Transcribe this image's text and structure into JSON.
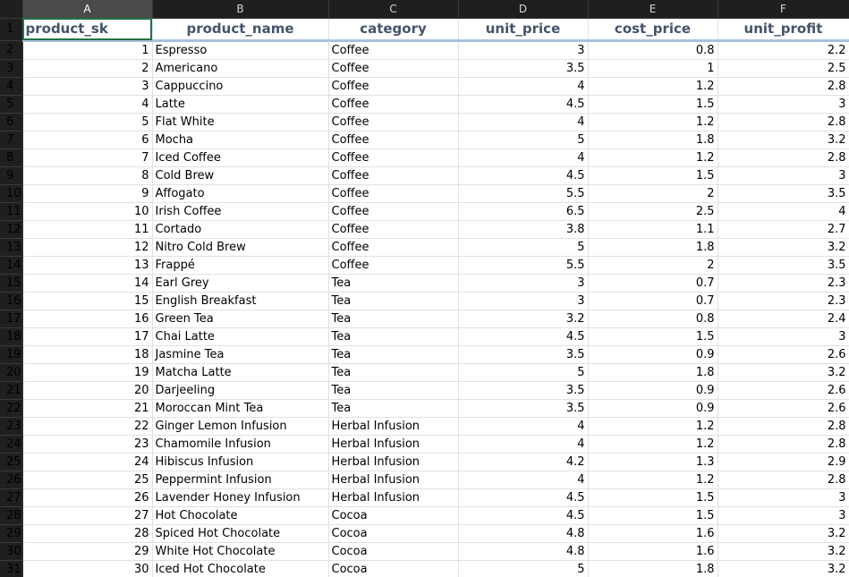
{
  "grid": {
    "columns": [
      "A",
      "B",
      "C",
      "D",
      "E",
      "F"
    ],
    "headers": [
      "product_sk",
      "product_name",
      "category",
      "unit_price",
      "cost_price",
      "unit_profit"
    ],
    "rows": [
      {
        "sk": "1",
        "name": "Espresso",
        "category": "Coffee",
        "unit_price": "3",
        "cost_price": "0.8",
        "unit_profit": "2.2"
      },
      {
        "sk": "2",
        "name": "Americano",
        "category": "Coffee",
        "unit_price": "3.5",
        "cost_price": "1",
        "unit_profit": "2.5"
      },
      {
        "sk": "3",
        "name": "Cappuccino",
        "category": "Coffee",
        "unit_price": "4",
        "cost_price": "1.2",
        "unit_profit": "2.8"
      },
      {
        "sk": "4",
        "name": "Latte",
        "category": "Coffee",
        "unit_price": "4.5",
        "cost_price": "1.5",
        "unit_profit": "3"
      },
      {
        "sk": "5",
        "name": "Flat White",
        "category": "Coffee",
        "unit_price": "4",
        "cost_price": "1.2",
        "unit_profit": "2.8"
      },
      {
        "sk": "6",
        "name": "Mocha",
        "category": "Coffee",
        "unit_price": "5",
        "cost_price": "1.8",
        "unit_profit": "3.2"
      },
      {
        "sk": "7",
        "name": "Iced Coffee",
        "category": "Coffee",
        "unit_price": "4",
        "cost_price": "1.2",
        "unit_profit": "2.8"
      },
      {
        "sk": "8",
        "name": "Cold Brew",
        "category": "Coffee",
        "unit_price": "4.5",
        "cost_price": "1.5",
        "unit_profit": "3"
      },
      {
        "sk": "9",
        "name": "Affogato",
        "category": "Coffee",
        "unit_price": "5.5",
        "cost_price": "2",
        "unit_profit": "3.5"
      },
      {
        "sk": "10",
        "name": "Irish Coffee",
        "category": "Coffee",
        "unit_price": "6.5",
        "cost_price": "2.5",
        "unit_profit": "4"
      },
      {
        "sk": "11",
        "name": "Cortado",
        "category": "Coffee",
        "unit_price": "3.8",
        "cost_price": "1.1",
        "unit_profit": "2.7"
      },
      {
        "sk": "12",
        "name": "Nitro Cold Brew",
        "category": "Coffee",
        "unit_price": "5",
        "cost_price": "1.8",
        "unit_profit": "3.2"
      },
      {
        "sk": "13",
        "name": "Frappé",
        "category": "Coffee",
        "unit_price": "5.5",
        "cost_price": "2",
        "unit_profit": "3.5"
      },
      {
        "sk": "14",
        "name": "Earl Grey",
        "category": "Tea",
        "unit_price": "3",
        "cost_price": "0.7",
        "unit_profit": "2.3"
      },
      {
        "sk": "15",
        "name": "English Breakfast",
        "category": "Tea",
        "unit_price": "3",
        "cost_price": "0.7",
        "unit_profit": "2.3"
      },
      {
        "sk": "16",
        "name": "Green Tea",
        "category": "Tea",
        "unit_price": "3.2",
        "cost_price": "0.8",
        "unit_profit": "2.4"
      },
      {
        "sk": "17",
        "name": "Chai Latte",
        "category": "Tea",
        "unit_price": "4.5",
        "cost_price": "1.5",
        "unit_profit": "3"
      },
      {
        "sk": "18",
        "name": "Jasmine Tea",
        "category": "Tea",
        "unit_price": "3.5",
        "cost_price": "0.9",
        "unit_profit": "2.6"
      },
      {
        "sk": "19",
        "name": "Matcha Latte",
        "category": "Tea",
        "unit_price": "5",
        "cost_price": "1.8",
        "unit_profit": "3.2"
      },
      {
        "sk": "20",
        "name": "Darjeeling",
        "category": "Tea",
        "unit_price": "3.5",
        "cost_price": "0.9",
        "unit_profit": "2.6"
      },
      {
        "sk": "21",
        "name": "Moroccan Mint Tea",
        "category": "Tea",
        "unit_price": "3.5",
        "cost_price": "0.9",
        "unit_profit": "2.6"
      },
      {
        "sk": "22",
        "name": "Ginger Lemon Infusion",
        "category": "Herbal Infusion",
        "unit_price": "4",
        "cost_price": "1.2",
        "unit_profit": "2.8"
      },
      {
        "sk": "23",
        "name": "Chamomile Infusion",
        "category": "Herbal Infusion",
        "unit_price": "4",
        "cost_price": "1.2",
        "unit_profit": "2.8"
      },
      {
        "sk": "24",
        "name": "Hibiscus Infusion",
        "category": "Herbal Infusion",
        "unit_price": "4.2",
        "cost_price": "1.3",
        "unit_profit": "2.9"
      },
      {
        "sk": "25",
        "name": "Peppermint Infusion",
        "category": "Herbal Infusion",
        "unit_price": "4",
        "cost_price": "1.2",
        "unit_profit": "2.8"
      },
      {
        "sk": "26",
        "name": "Lavender Honey Infusion",
        "category": "Herbal Infusion",
        "unit_price": "4.5",
        "cost_price": "1.5",
        "unit_profit": "3"
      },
      {
        "sk": "27",
        "name": "Hot Chocolate",
        "category": "Cocoa",
        "unit_price": "4.5",
        "cost_price": "1.5",
        "unit_profit": "3"
      },
      {
        "sk": "28",
        "name": "Spiced Hot Chocolate",
        "category": "Cocoa",
        "unit_price": "4.8",
        "cost_price": "1.6",
        "unit_profit": "3.2"
      },
      {
        "sk": "29",
        "name": "White Hot Chocolate",
        "category": "Cocoa",
        "unit_price": "4.8",
        "cost_price": "1.6",
        "unit_profit": "3.2"
      },
      {
        "sk": "30",
        "name": "Iced Hot Chocolate",
        "category": "Cocoa",
        "unit_price": "5",
        "cost_price": "1.8",
        "unit_profit": "3.2"
      }
    ]
  }
}
